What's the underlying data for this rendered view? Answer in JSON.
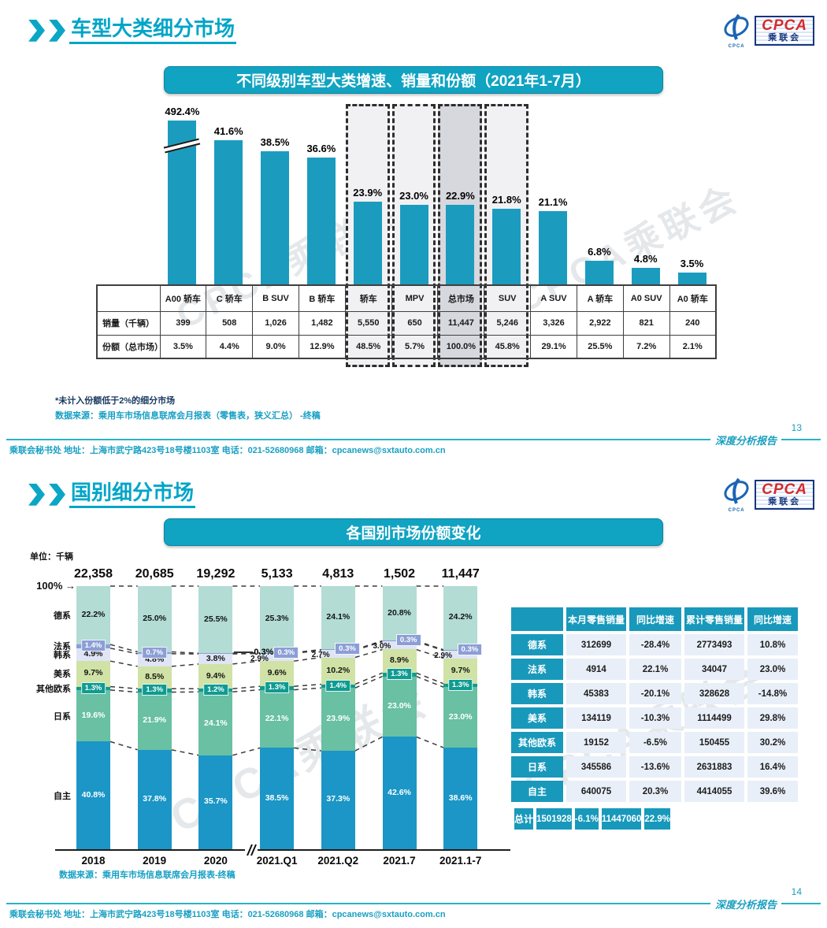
{
  "watermark": "CPCA乘联会",
  "logo": {
    "main": "CPCA",
    "sub": "乘联会"
  },
  "footer": {
    "contact": "乘联会秘书处  地址：上海市武宁路423号18号楼1103室  电话：021-52680968  邮箱：cpcanews@sxtauto.com.cn",
    "brand": "深度分析报告"
  },
  "slide1": {
    "page_number": "13",
    "header_title": "车型大类细分市场",
    "banner": "不同级别车型大类增速、销量和份额（2021年1-7月）",
    "notes": {
      "note1": "*未计入份额低于2%的细分市场",
      "note2": "数据来源：乘用车市场信息联席会月报表（零售表，狭义汇总） -终稿"
    },
    "chart_data": {
      "type": "bar",
      "title": "不同级别车型大类增速、销量和份额（2021年1-7月）",
      "categories": [
        "A00 轿车",
        "C 轿车",
        "B SUV",
        "B 轿车",
        "轿车",
        "MPV",
        "总市场",
        "SUV",
        "A SUV",
        "A 轿车",
        "A0 SUV",
        "A0 轿车"
      ],
      "values": [
        492.4,
        41.6,
        38.5,
        36.6,
        23.9,
        23.0,
        22.9,
        21.8,
        21.1,
        6.8,
        4.8,
        3.5
      ],
      "value_labels": [
        "492.4%",
        "41.6%",
        "38.5%",
        "36.6%",
        "23.9%",
        "23.0%",
        "22.9%",
        "21.8%",
        "21.1%",
        "6.8%",
        "4.8%",
        "3.5%"
      ],
      "broken_bar_index": 0,
      "highlighted_columns": [
        4,
        5,
        6,
        7
      ],
      "dark_highlight_column": 6,
      "bar_color": "#1b9cbe",
      "table_rows": [
        {
          "label": "销量（千辆）",
          "values": [
            "399",
            "508",
            "1,026",
            "1,482",
            "5,550",
            "650",
            "11,447",
            "5,246",
            "3,326",
            "2,922",
            "821",
            "240"
          ]
        },
        {
          "label": "份额（总市场）",
          "values": [
            "3.5%",
            "4.4%",
            "9.0%",
            "12.9%",
            "48.5%",
            "5.7%",
            "100.0%",
            "45.8%",
            "29.1%",
            "25.5%",
            "7.2%",
            "2.1%"
          ]
        }
      ]
    }
  },
  "slide2": {
    "page_number": "14",
    "header_title": "国别细分市场",
    "banner": "各国别市场份额变化",
    "unit_label": "单位：千辆",
    "axis_100_label": "100% →",
    "source_note": "数据来源：乘用车市场信息联席会月报表-终稿",
    "chart_data": {
      "type": "stacked-bar",
      "categories": [
        "2018",
        "2019",
        "2020",
        "2021.Q1",
        "2021.Q2",
        "2021.7",
        "2021.1-7"
      ],
      "totals": [
        "22,358",
        "20,685",
        "19,292",
        "5,133",
        "4,813",
        "1,502",
        "11,447"
      ],
      "series": [
        {
          "name": "德系",
          "color": "#b2dcd4",
          "label_style": "dark",
          "values": [
            22.2,
            25.0,
            25.5,
            25.3,
            24.1,
            20.8,
            24.2
          ],
          "labels": [
            "22.2%",
            "25.0%",
            "25.5%",
            "25.3%",
            "24.1%",
            "20.8%",
            "24.2%"
          ]
        },
        {
          "name": "法系",
          "color": "#8c9ed6",
          "label_style": "box-blue",
          "values": [
            1.4,
            0.7,
            0.3,
            0.3,
            0.3,
            0.3,
            0.3
          ],
          "labels": [
            "1.4%",
            "0.7%",
            "0.3%",
            "0.3%",
            "0.3%",
            "0.3%",
            "0.3%"
          ]
        },
        {
          "name": "韩系",
          "color": "#dfe5f5",
          "label_style": "dark",
          "values": [
            4.9,
            4.8,
            3.8,
            2.9,
            2.7,
            3.0,
            2.9
          ],
          "labels": [
            "4.9%",
            "4.8%",
            "3.8%",
            "2.9%",
            "2.7%",
            "3.0%",
            "2.9%"
          ]
        },
        {
          "name": "美系",
          "color": "#d0e2a5",
          "label_style": "dark",
          "values": [
            9.7,
            8.5,
            9.4,
            9.6,
            10.2,
            8.9,
            9.7
          ],
          "labels": [
            "9.7%",
            "8.5%",
            "9.4%",
            "9.6%",
            "10.2%",
            "8.9%",
            "9.7%"
          ]
        },
        {
          "name": "其他欧系",
          "color": "#0f9b91",
          "label_style": "box-teal",
          "values": [
            1.3,
            1.3,
            1.2,
            1.3,
            1.4,
            1.3,
            1.3
          ],
          "labels": [
            "1.3%",
            "1.3%",
            "1.2%",
            "1.3%",
            "1.4%",
            "1.3%",
            "1.3%"
          ]
        },
        {
          "name": "日系",
          "color": "#69c0a3",
          "label_style": "white",
          "values": [
            19.6,
            21.9,
            24.1,
            22.1,
            23.9,
            23.0,
            23.0
          ],
          "labels": [
            "19.6%",
            "21.9%",
            "24.1%",
            "22.1%",
            "23.9%",
            "23.0%",
            "23.0%"
          ]
        },
        {
          "name": "自主",
          "color": "#1b96c6",
          "label_style": "white",
          "values": [
            40.8,
            37.8,
            35.7,
            38.5,
            37.3,
            42.6,
            38.6
          ],
          "labels": [
            "40.8%",
            "37.8%",
            "35.7%",
            "38.5%",
            "37.3%",
            "42.6%",
            "38.6%"
          ]
        }
      ],
      "fr_label_modes": [
        "center",
        "center",
        "callout",
        "side",
        "side",
        "side",
        "side"
      ]
    },
    "table": {
      "headers": [
        "本月零售销量",
        "同比增速",
        "累计零售销量",
        "同比增速"
      ],
      "rows": [
        {
          "label": "德系",
          "values": [
            "312699",
            "-28.4%",
            "2773493",
            "10.8%"
          ]
        },
        {
          "label": "法系",
          "values": [
            "4914",
            "22.1%",
            "34047",
            "23.0%"
          ]
        },
        {
          "label": "韩系",
          "values": [
            "45383",
            "-20.1%",
            "328628",
            "-14.8%"
          ]
        },
        {
          "label": "美系",
          "values": [
            "134119",
            "-10.3%",
            "1114499",
            "29.8%"
          ]
        },
        {
          "label": "其他欧系",
          "values": [
            "19152",
            "-6.5%",
            "150455",
            "30.2%"
          ]
        },
        {
          "label": "日系",
          "values": [
            "345586",
            "-13.6%",
            "2631883",
            "16.4%"
          ]
        },
        {
          "label": "自主",
          "values": [
            "640075",
            "20.3%",
            "4414055",
            "39.6%"
          ]
        },
        {
          "label": "总计",
          "values": [
            "1501928",
            "-6.1%",
            "11447060",
            "22.9%"
          ],
          "total": true
        }
      ]
    }
  }
}
